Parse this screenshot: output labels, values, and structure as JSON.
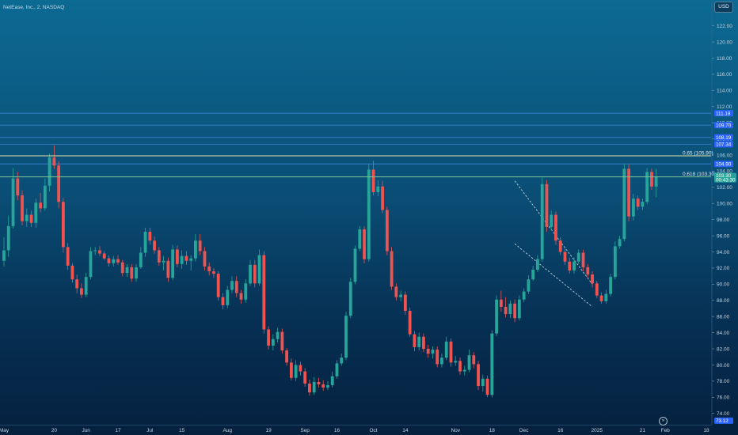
{
  "chart_title": "NetEase, Inc., 2, NASDAQ",
  "currency": "USD",
  "goto_realtime_glyph": "»",
  "colors": {
    "up": "#26a69a",
    "down": "#ef5350",
    "horizontal_lines": "#3f86d6",
    "fib_0_65": "#e8e3a4",
    "fib_0_618": "#7ec48f",
    "trend_channel": "#b9cfdc",
    "badge_blue": "#2962ff",
    "badge_green": "#26a69a"
  },
  "chart_data": {
    "type": "candlestick",
    "title": "NetEase, Inc., 2, NASDAQ",
    "ylim": [
      72.6,
      125.2
    ],
    "y_ticks": [
      "122.00",
      "120.00",
      "118.00",
      "116.00",
      "114.00",
      "112.00",
      "110.00",
      "108.00",
      "106.00",
      "104.00",
      "102.00",
      "100.00",
      "98.00",
      "96.00",
      "94.00",
      "92.00",
      "90.00",
      "88.00",
      "86.00",
      "84.00",
      "82.00",
      "80.00",
      "78.00",
      "76.00",
      "74.00"
    ],
    "x_ticks": [
      {
        "label": "May",
        "i": 0
      },
      {
        "label": "20",
        "i": 11
      },
      {
        "label": "Jun",
        "i": 18
      },
      {
        "label": "17",
        "i": 25
      },
      {
        "label": "Jul",
        "i": 32
      },
      {
        "label": "15",
        "i": 39
      },
      {
        "label": "Aug",
        "i": 49
      },
      {
        "label": "19",
        "i": 58
      },
      {
        "label": "Sep",
        "i": 66
      },
      {
        "label": "16",
        "i": 73
      },
      {
        "label": "Oct",
        "i": 81
      },
      {
        "label": "14",
        "i": 88
      },
      {
        "label": "Nov",
        "i": 99
      },
      {
        "label": "18",
        "i": 107
      },
      {
        "label": "Dec",
        "i": 114
      },
      {
        "label": "16",
        "i": 122
      },
      {
        "label": "2025",
        "i": 130
      },
      {
        "label": "21",
        "i": 140
      },
      {
        "label": "Feb",
        "i": 145
      },
      {
        "label": "18",
        "i": 154
      }
    ],
    "bar_count": 156,
    "ohlc": [
      [
        92.9,
        95.8,
        92.2,
        94.2
      ],
      [
        94.2,
        98.5,
        93.4,
        97.2
      ],
      [
        97.2,
        104.4,
        96.9,
        103.1
      ],
      [
        103.1,
        103.9,
        100.4,
        101.0
      ],
      [
        101.0,
        101.6,
        97.3,
        97.8
      ],
      [
        97.8,
        99.4,
        97.1,
        98.6
      ],
      [
        98.6,
        99.1,
        97.1,
        97.6
      ],
      [
        97.6,
        100.6,
        97.0,
        100.1
      ],
      [
        100.1,
        101.3,
        98.9,
        99.4
      ],
      [
        99.4,
        103.1,
        99.1,
        102.2
      ],
      [
        102.2,
        106.2,
        101.5,
        105.7
      ],
      [
        105.7,
        107.2,
        104.3,
        104.7
      ],
      [
        104.7,
        105.2,
        99.4,
        100.2
      ],
      [
        100.2,
        100.7,
        93.9,
        94.6
      ],
      [
        94.6,
        95.1,
        91.8,
        92.3
      ],
      [
        92.3,
        92.6,
        90.2,
        90.6
      ],
      [
        90.6,
        91.2,
        88.9,
        89.5
      ],
      [
        89.5,
        90.1,
        88.3,
        88.7
      ],
      [
        88.7,
        91.4,
        88.4,
        90.9
      ],
      [
        90.9,
        94.6,
        90.6,
        94.1
      ],
      [
        94.1,
        94.6,
        93.6,
        94.2
      ],
      [
        94.2,
        94.7,
        93.5,
        93.8
      ],
      [
        93.8,
        94.1,
        93.0,
        93.2
      ],
      [
        93.2,
        93.6,
        92.2,
        92.6
      ],
      [
        92.6,
        93.5,
        92.2,
        93.1
      ],
      [
        93.1,
        93.6,
        92.4,
        92.7
      ],
      [
        92.7,
        93.0,
        91.0,
        91.4
      ],
      [
        91.4,
        92.5,
        90.9,
        92.1
      ],
      [
        92.1,
        92.5,
        90.3,
        90.7
      ],
      [
        90.7,
        92.5,
        90.3,
        92.1
      ],
      [
        92.1,
        94.6,
        91.9,
        93.9
      ],
      [
        93.9,
        97.0,
        93.4,
        96.5
      ],
      [
        96.5,
        97.0,
        94.9,
        95.4
      ],
      [
        95.4,
        95.9,
        93.8,
        94.2
      ],
      [
        94.2,
        94.6,
        92.3,
        92.7
      ],
      [
        92.7,
        93.5,
        91.7,
        92.9
      ],
      [
        92.9,
        93.3,
        90.3,
        90.8
      ],
      [
        90.8,
        94.9,
        90.5,
        94.3
      ],
      [
        94.3,
        94.8,
        92.1,
        92.5
      ],
      [
        92.5,
        94.2,
        91.9,
        93.5
      ],
      [
        93.5,
        94.1,
        92.4,
        92.9
      ],
      [
        92.9,
        93.6,
        91.7,
        93.2
      ],
      [
        93.2,
        96.2,
        92.8,
        95.4
      ],
      [
        95.4,
        96.2,
        93.6,
        94.1
      ],
      [
        94.1,
        94.6,
        91.7,
        92.2
      ],
      [
        92.2,
        92.7,
        91.1,
        91.6
      ],
      [
        91.6,
        92.0,
        90.8,
        91.3
      ],
      [
        91.3,
        91.6,
        88.0,
        88.4
      ],
      [
        88.4,
        88.9,
        86.9,
        87.4
      ],
      [
        87.4,
        89.8,
        87.0,
        89.3
      ],
      [
        89.3,
        91.0,
        88.9,
        90.4
      ],
      [
        90.4,
        91.0,
        88.4,
        88.9
      ],
      [
        88.9,
        89.3,
        87.6,
        88.1
      ],
      [
        88.1,
        90.6,
        87.7,
        90.1
      ],
      [
        90.1,
        93.0,
        89.8,
        92.4
      ],
      [
        92.4,
        93.0,
        89.6,
        90.1
      ],
      [
        90.1,
        94.3,
        89.8,
        93.6
      ],
      [
        93.6,
        94.1,
        83.9,
        84.4
      ],
      [
        84.4,
        84.8,
        81.9,
        82.4
      ],
      [
        82.4,
        83.8,
        81.8,
        83.2
      ],
      [
        83.2,
        84.6,
        82.8,
        84.1
      ],
      [
        84.1,
        84.5,
        81.4,
        81.8
      ],
      [
        81.8,
        82.1,
        79.9,
        80.3
      ],
      [
        80.3,
        80.8,
        78.1,
        78.4
      ],
      [
        78.4,
        80.6,
        78.0,
        80.0
      ],
      [
        80.0,
        80.4,
        78.7,
        79.2
      ],
      [
        79.2,
        79.6,
        77.3,
        77.7
      ],
      [
        77.7,
        78.2,
        76.2,
        76.6
      ],
      [
        76.6,
        78.5,
        76.3,
        77.9
      ],
      [
        77.9,
        78.4,
        77.2,
        77.6
      ],
      [
        77.6,
        78.1,
        76.8,
        77.2
      ],
      [
        77.2,
        78.0,
        76.9,
        77.5
      ],
      [
        77.5,
        79.2,
        77.2,
        78.6
      ],
      [
        78.6,
        80.6,
        78.3,
        80.2
      ],
      [
        80.2,
        81.4,
        79.9,
        80.9
      ],
      [
        80.9,
        86.6,
        80.6,
        86.1
      ],
      [
        86.1,
        90.8,
        85.8,
        90.3
      ],
      [
        90.3,
        94.8,
        90.0,
        94.4
      ],
      [
        94.4,
        97.2,
        94.1,
        96.8
      ],
      [
        96.8,
        97.2,
        92.6,
        93.1
      ],
      [
        93.1,
        104.9,
        92.8,
        104.2
      ],
      [
        104.2,
        105.3,
        101.0,
        101.4
      ],
      [
        101.4,
        102.9,
        100.9,
        102.1
      ],
      [
        102.1,
        102.8,
        98.8,
        99.2
      ],
      [
        99.2,
        99.6,
        93.6,
        94.1
      ],
      [
        94.1,
        94.6,
        89.3,
        89.7
      ],
      [
        89.7,
        90.1,
        88.0,
        88.4
      ],
      [
        88.4,
        89.2,
        87.9,
        88.7
      ],
      [
        88.7,
        89.1,
        86.2,
        86.7
      ],
      [
        86.7,
        87.1,
        83.5,
        83.8
      ],
      [
        83.8,
        84.2,
        81.7,
        82.2
      ],
      [
        82.2,
        84.0,
        81.8,
        83.5
      ],
      [
        83.5,
        83.9,
        81.6,
        82.0
      ],
      [
        82.0,
        82.5,
        80.9,
        81.4
      ],
      [
        81.4,
        82.3,
        80.8,
        81.9
      ],
      [
        81.9,
        82.3,
        79.7,
        80.1
      ],
      [
        80.1,
        81.4,
        79.7,
        80.9
      ],
      [
        80.9,
        83.5,
        80.6,
        82.9
      ],
      [
        82.9,
        83.3,
        79.8,
        80.3
      ],
      [
        80.3,
        81.1,
        79.9,
        80.5
      ],
      [
        80.5,
        80.9,
        78.8,
        79.2
      ],
      [
        79.2,
        79.9,
        78.7,
        79.4
      ],
      [
        79.4,
        81.9,
        79.1,
        81.2
      ],
      [
        81.2,
        81.6,
        79.6,
        80.1
      ],
      [
        80.1,
        80.5,
        76.9,
        77.4
      ],
      [
        77.4,
        78.8,
        76.7,
        78.3
      ],
      [
        78.3,
        78.7,
        76.0,
        76.3
      ],
      [
        76.3,
        84.3,
        76.0,
        83.9
      ],
      [
        83.9,
        88.6,
        83.6,
        88.1
      ],
      [
        88.1,
        89.2,
        86.6,
        87.2
      ],
      [
        87.2,
        88.4,
        85.9,
        86.3
      ],
      [
        86.3,
        88.0,
        85.8,
        87.6
      ],
      [
        87.6,
        88.1,
        85.3,
        85.8
      ],
      [
        85.8,
        88.6,
        85.5,
        88.1
      ],
      [
        88.1,
        89.5,
        87.8,
        89.1
      ],
      [
        89.1,
        91.1,
        88.8,
        90.6
      ],
      [
        90.6,
        92.3,
        90.4,
        91.8
      ],
      [
        91.8,
        93.6,
        91.5,
        93.1
      ],
      [
        93.1,
        103.2,
        92.8,
        102.4
      ],
      [
        102.4,
        102.9,
        96.5,
        97.1
      ],
      [
        97.1,
        99.1,
        96.7,
        98.6
      ],
      [
        98.6,
        99.0,
        94.9,
        95.4
      ],
      [
        95.4,
        95.8,
        93.6,
        94.0
      ],
      [
        94.0,
        94.4,
        92.4,
        92.8
      ],
      [
        92.8,
        93.3,
        91.3,
        91.7
      ],
      [
        91.7,
        93.3,
        91.3,
        92.8
      ],
      [
        92.8,
        94.3,
        92.5,
        93.9
      ],
      [
        93.9,
        94.3,
        91.6,
        92.1
      ],
      [
        92.1,
        92.5,
        90.8,
        91.2
      ],
      [
        91.2,
        91.6,
        89.6,
        90.1
      ],
      [
        90.1,
        90.4,
        88.3,
        88.6
      ],
      [
        88.6,
        89.0,
        87.6,
        87.9
      ],
      [
        87.9,
        89.3,
        87.6,
        88.8
      ],
      [
        88.8,
        91.3,
        88.5,
        90.9
      ],
      [
        90.9,
        95.3,
        90.6,
        94.7
      ],
      [
        94.7,
        96.0,
        94.4,
        95.6
      ],
      [
        95.6,
        104.9,
        95.3,
        104.3
      ],
      [
        104.3,
        104.8,
        97.8,
        98.4
      ],
      [
        98.4,
        101.2,
        97.9,
        100.6
      ],
      [
        100.6,
        101.0,
        99.2,
        99.6
      ],
      [
        99.6,
        100.6,
        99.2,
        100.2
      ],
      [
        100.2,
        104.4,
        99.9,
        103.9
      ],
      [
        103.9,
        104.3,
        101.7,
        102.1
      ],
      [
        102.1,
        104.3,
        100.8,
        103.3
      ],
      null,
      null,
      null,
      null,
      null,
      null,
      null,
      null,
      null,
      null,
      null,
      null
    ],
    "horizontal_levels": [
      {
        "price": 111.18,
        "label": "111.18"
      },
      {
        "price": 109.7,
        "label": "109.70"
      },
      {
        "price": 108.19,
        "label": "108.19"
      },
      {
        "price": 107.34,
        "label": "107.34"
      },
      {
        "price": 104.9,
        "label": "104.90"
      }
    ],
    "fib_levels": [
      {
        "price": 105.9,
        "label": "0.65 (105.90)",
        "role": "fib_0_65"
      },
      {
        "price": 103.3,
        "label": "0.618 (103.30)",
        "role": "fib_0_618"
      }
    ],
    "last_price": {
      "price": 103.3,
      "label": "103.30",
      "sublabel": "00:43:30"
    },
    "extra_badges": [
      {
        "price": 73.1,
        "label": "73.12"
      }
    ],
    "channel": {
      "from_i": 112,
      "to_i": 129,
      "upper": [
        102.8,
        90.0
      ],
      "lower": [
        95.0,
        87.2
      ]
    }
  }
}
